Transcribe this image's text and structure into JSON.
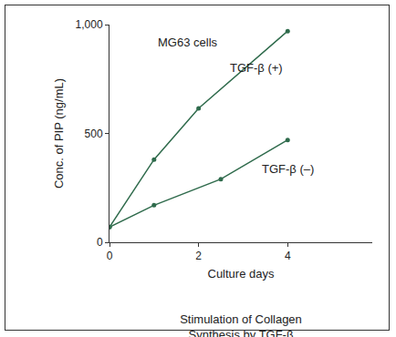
{
  "chart_data": {
    "type": "line",
    "title": "Stimulation of Collagen\nSynthesis by TGF-β",
    "x_label": "Culture days",
    "y_label": "Conc. of PIP (ng/mL)",
    "annotations": [
      "MG63 cells"
    ],
    "series": [
      {
        "name": "TGF-β (+)",
        "color": "#2f6b4c",
        "x": [
          0,
          1,
          2,
          4
        ],
        "values": [
          70,
          380,
          615,
          970
        ],
        "marker": "circle"
      },
      {
        "name": "TGF-β (–)",
        "color": "#2f6b4c",
        "x": [
          0,
          1,
          2.5,
          4
        ],
        "values": [
          70,
          170,
          290,
          470
        ],
        "marker": "circle"
      }
    ],
    "xlim": [
      0,
      5.9
    ],
    "xticks": [
      0,
      2,
      4
    ],
    "ylim": [
      0,
      1000
    ],
    "yticks": [
      0,
      500,
      {
        "value": 1000,
        "label": "1,000"
      }
    ],
    "grid": false,
    "legend": false
  }
}
